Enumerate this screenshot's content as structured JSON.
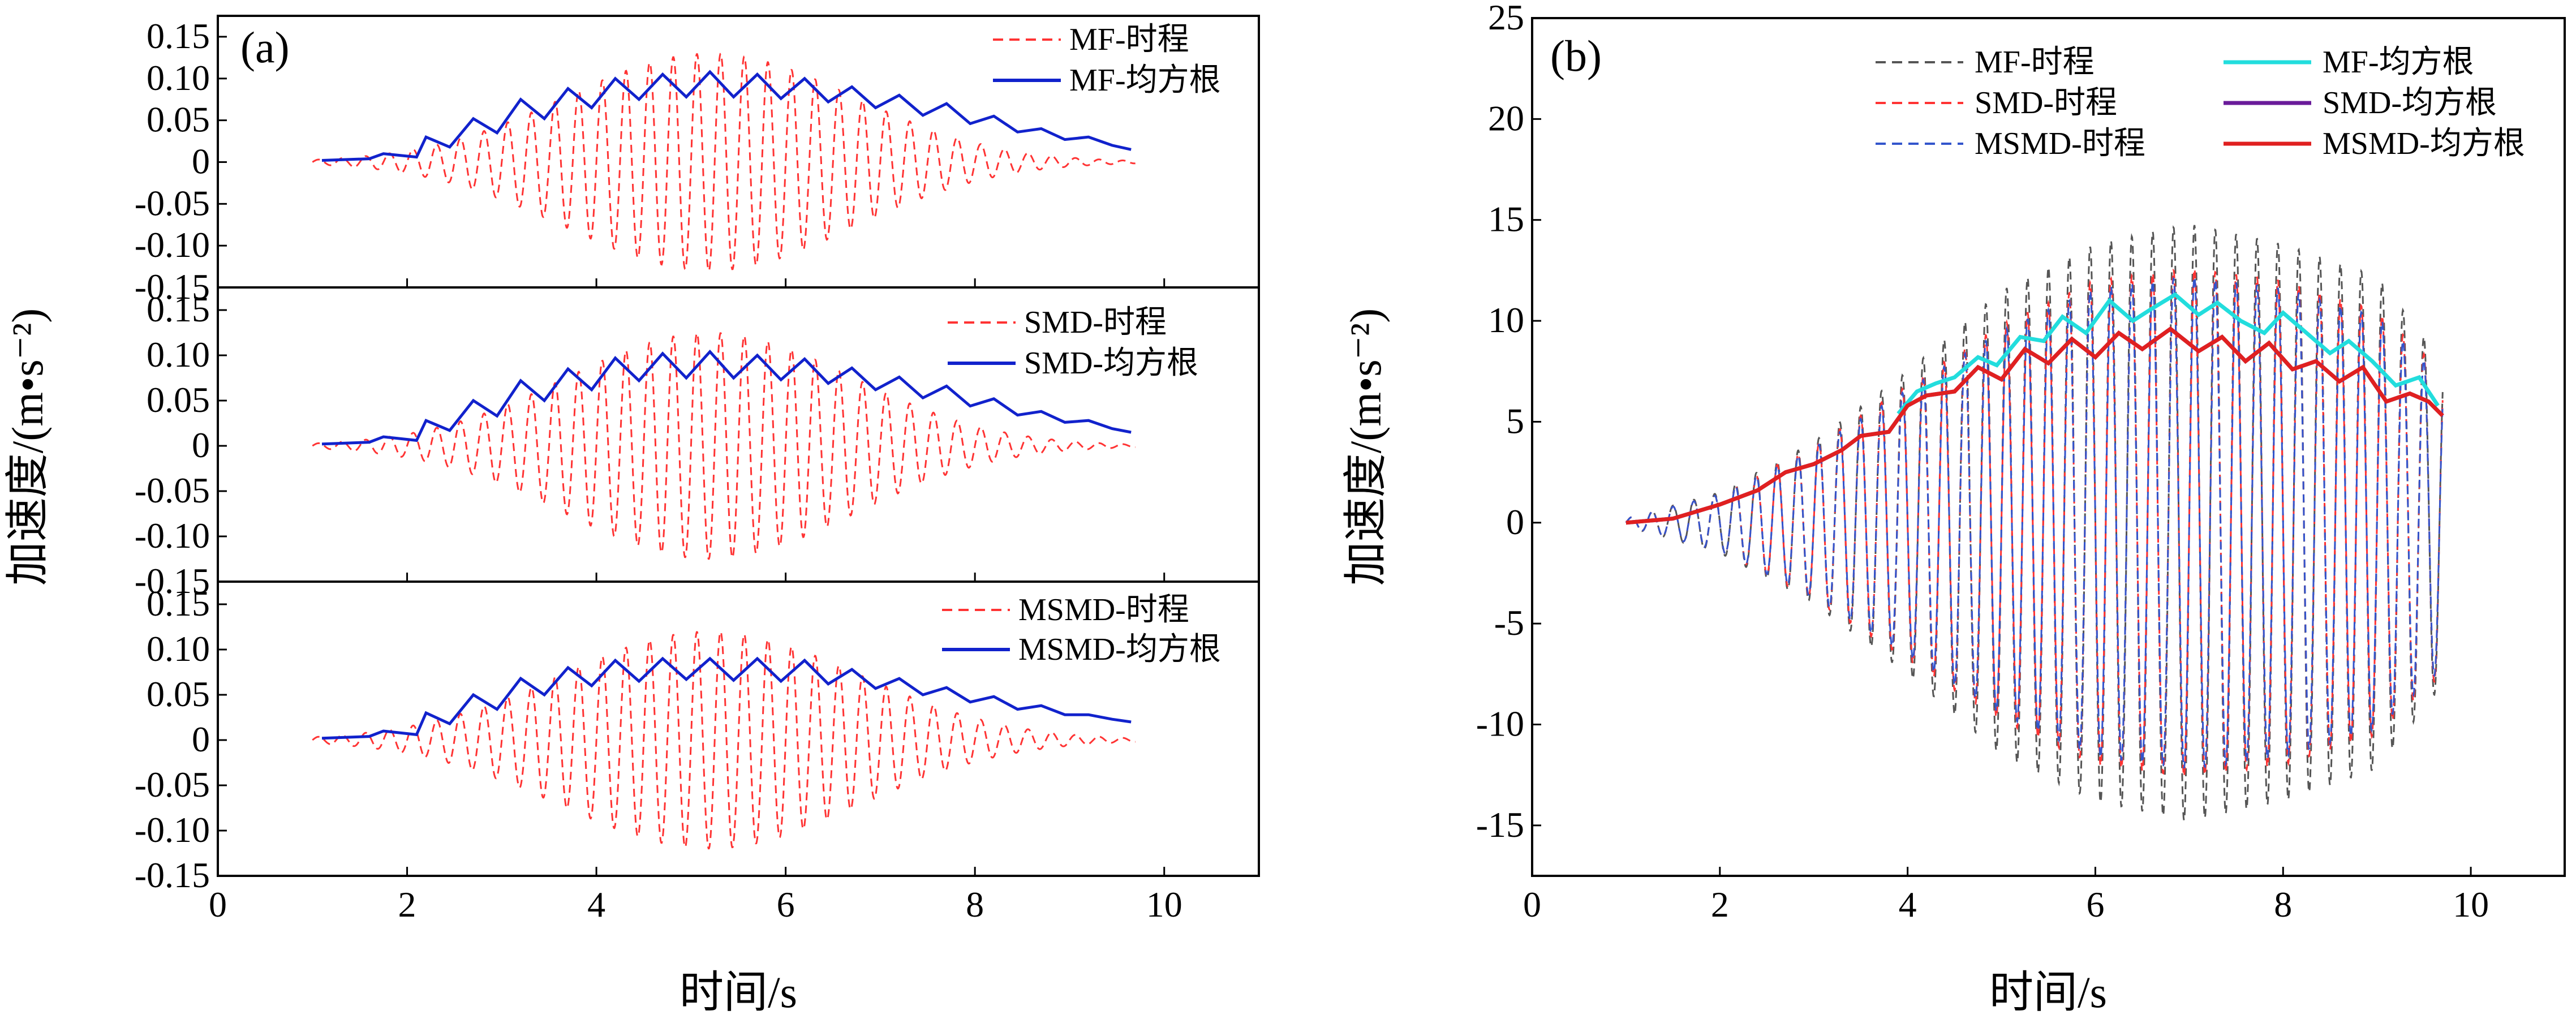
{
  "figure": {
    "colors": {
      "mf_time": "#555555",
      "red_time": "#ff3333",
      "blue_time": "#3355cc",
      "blue_rms": "#1122cc",
      "mf_rms": "#22dddd",
      "smd_rms": "#6a1b9a",
      "msmd_rms": "#e02020"
    }
  },
  "chart_data": [
    {
      "type": "line",
      "panel": "(a) top",
      "panel_tag": "(a)",
      "xlim": [
        0,
        11
      ],
      "ylim": [
        -0.15,
        0.175
      ],
      "xticks": [
        "0",
        "2",
        "4",
        "6",
        "8",
        "10"
      ],
      "yticks": [
        "-0.15",
        "-0.10",
        "-0.05",
        "0",
        "0.05",
        "0.10",
        "0.15"
      ],
      "ytick_values": [
        -0.15,
        -0.1,
        -0.05,
        0,
        0.05,
        0.1,
        0.15
      ],
      "show_x_ticklabels": false,
      "legend_position": "top-right",
      "signal": {
        "t_start": 1.0,
        "t_end": 9.7,
        "freq_hz": 4.0,
        "peak_time": 5.2,
        "peak_amp": 0.13,
        "spread": 2.7
      },
      "rms": {
        "x": [
          1.1,
          1.6,
          1.75,
          2.1,
          2.2,
          2.45,
          2.7,
          2.95,
          3.2,
          3.45,
          3.7,
          3.95,
          4.2,
          4.45,
          4.7,
          4.95,
          5.2,
          5.45,
          5.7,
          5.95,
          6.2,
          6.45,
          6.7,
          6.95,
          7.2,
          7.45,
          7.7,
          7.95,
          8.2,
          8.45,
          8.7,
          8.95,
          9.2,
          9.45,
          9.65
        ],
        "y": [
          0.002,
          0.004,
          0.01,
          0.006,
          0.03,
          0.018,
          0.052,
          0.035,
          0.075,
          0.052,
          0.088,
          0.065,
          0.1,
          0.075,
          0.105,
          0.078,
          0.108,
          0.078,
          0.105,
          0.076,
          0.1,
          0.072,
          0.09,
          0.065,
          0.08,
          0.056,
          0.07,
          0.046,
          0.055,
          0.036,
          0.04,
          0.027,
          0.03,
          0.02,
          0.015
        ]
      },
      "series": [
        {
          "name": "MF-时程",
          "style": "dashed",
          "color": "#ff3333"
        },
        {
          "name": "MF-均方根",
          "style": "solid",
          "color": "#1122cc"
        }
      ]
    },
    {
      "type": "line",
      "panel": "(a) middle",
      "xlim": [
        0,
        11
      ],
      "ylim": [
        -0.15,
        0.175
      ],
      "xticks": [
        "0",
        "2",
        "4",
        "6",
        "8",
        "10"
      ],
      "yticks": [
        "-0.15",
        "-0.10",
        "-0.05",
        "0",
        "0.05",
        "0.10",
        "0.15"
      ],
      "ytick_values": [
        -0.15,
        -0.1,
        -0.05,
        0,
        0.05,
        0.1,
        0.15
      ],
      "show_x_ticklabels": false,
      "legend_position": "top-right",
      "signal": {
        "t_start": 1.0,
        "t_end": 9.7,
        "freq_hz": 4.0,
        "peak_time": 5.2,
        "peak_amp": 0.125,
        "spread": 2.7
      },
      "rms": {
        "x": [
          1.1,
          1.6,
          1.75,
          2.1,
          2.2,
          2.45,
          2.7,
          2.95,
          3.2,
          3.45,
          3.7,
          3.95,
          4.2,
          4.45,
          4.7,
          4.95,
          5.2,
          5.45,
          5.7,
          5.95,
          6.2,
          6.45,
          6.7,
          6.95,
          7.2,
          7.45,
          7.7,
          7.95,
          8.2,
          8.45,
          8.7,
          8.95,
          9.2,
          9.45,
          9.65
        ],
        "y": [
          0.002,
          0.004,
          0.01,
          0.006,
          0.028,
          0.017,
          0.05,
          0.033,
          0.072,
          0.05,
          0.085,
          0.062,
          0.097,
          0.072,
          0.102,
          0.075,
          0.104,
          0.075,
          0.1,
          0.073,
          0.096,
          0.069,
          0.086,
          0.062,
          0.076,
          0.053,
          0.066,
          0.044,
          0.052,
          0.034,
          0.038,
          0.026,
          0.028,
          0.019,
          0.015
        ]
      },
      "series": [
        {
          "name": "SMD-时程",
          "style": "dashed",
          "color": "#ff3333"
        },
        {
          "name": "SMD-均方根",
          "style": "solid",
          "color": "#1122cc"
        }
      ]
    },
    {
      "type": "line",
      "panel": "(a) bottom",
      "xlim": [
        0,
        11
      ],
      "ylim": [
        -0.15,
        0.175
      ],
      "xticks": [
        "0",
        "2",
        "4",
        "6",
        "8",
        "10"
      ],
      "yticks": [
        "-0.15",
        "-0.10",
        "-0.05",
        "0",
        "0.05",
        "0.10",
        "0.15"
      ],
      "ytick_values": [
        -0.15,
        -0.1,
        -0.05,
        0,
        0.05,
        0.1,
        0.15
      ],
      "show_x_ticklabels": true,
      "xlabel": "时间/s",
      "legend_position": "top-right",
      "signal": {
        "t_start": 1.0,
        "t_end": 9.7,
        "freq_hz": 4.0,
        "peak_time": 5.2,
        "peak_amp": 0.12,
        "spread": 2.8
      },
      "rms": {
        "x": [
          1.1,
          1.6,
          1.75,
          2.1,
          2.2,
          2.45,
          2.7,
          2.95,
          3.2,
          3.45,
          3.7,
          3.95,
          4.2,
          4.45,
          4.7,
          4.95,
          5.2,
          5.45,
          5.7,
          5.95,
          6.2,
          6.45,
          6.7,
          6.95,
          7.2,
          7.45,
          7.7,
          7.95,
          8.2,
          8.45,
          8.7,
          8.95,
          9.2,
          9.45,
          9.65
        ],
        "y": [
          0.002,
          0.004,
          0.01,
          0.006,
          0.03,
          0.018,
          0.05,
          0.034,
          0.068,
          0.05,
          0.08,
          0.06,
          0.088,
          0.065,
          0.09,
          0.067,
          0.09,
          0.066,
          0.09,
          0.065,
          0.088,
          0.062,
          0.078,
          0.057,
          0.068,
          0.05,
          0.058,
          0.042,
          0.048,
          0.034,
          0.038,
          0.028,
          0.028,
          0.023,
          0.02
        ]
      },
      "series": [
        {
          "name": "MSMD-时程",
          "style": "dashed",
          "color": "#ff3333"
        },
        {
          "name": "MSMD-均方根",
          "style": "solid",
          "color": "#1122cc"
        }
      ]
    },
    {
      "type": "line",
      "panel": "(b)",
      "panel_tag": "(b)",
      "xlim": [
        0,
        11
      ],
      "ylim": [
        -17.5,
        25
      ],
      "xticks": [
        "0",
        "2",
        "4",
        "6",
        "8",
        "10"
      ],
      "yticks": [
        "-15",
        "-10",
        "-5",
        "0",
        "5",
        "10",
        "15",
        "20",
        "25"
      ],
      "ytick_values": [
        -15,
        -10,
        -5,
        0,
        5,
        10,
        15,
        20,
        25
      ],
      "xlabel": "时间/s",
      "ylabel": "加速度/(m•s⁻²)",
      "legend_position": "top-right",
      "signal": {
        "t_start": 1.0,
        "t_end": 9.7,
        "freq_hz": 4.5
      },
      "envelopes": {
        "MF-时程": {
          "x": [
            1.0,
            2.0,
            3.0,
            4.0,
            5.0,
            6.0,
            7.0,
            8.0,
            9.0,
            9.7
          ],
          "y": [
            0.2,
            1.5,
            4.0,
            7.5,
            11.5,
            13.8,
            14.8,
            13.8,
            12.2,
            8.0
          ]
        },
        "SMD-时程": {
          "x": [
            1.0,
            2.0,
            3.0,
            4.0,
            5.0,
            6.0,
            7.0,
            8.0,
            9.0,
            9.7
          ],
          "y": [
            0.2,
            1.4,
            3.8,
            6.8,
            9.8,
            12.0,
            12.6,
            12.0,
            10.5,
            7.5
          ]
        },
        "MSMD-时程": {
          "x": [
            1.0,
            2.0,
            3.0,
            4.0,
            5.0,
            6.0,
            7.0,
            8.0,
            9.0,
            9.7
          ],
          "y": [
            0.2,
            1.4,
            3.7,
            6.6,
            9.5,
            11.6,
            12.2,
            11.6,
            10.2,
            7.2
          ]
        }
      },
      "rms_series": [
        {
          "name": "MF-均方根",
          "x": [
            3.9,
            4.1,
            4.3,
            4.5,
            4.75,
            4.95,
            5.2,
            5.45,
            5.65,
            5.9,
            6.15,
            6.4,
            6.6,
            6.85,
            7.1,
            7.3,
            7.55,
            7.8,
            8.0,
            8.25,
            8.5,
            8.7,
            8.95,
            9.2,
            9.45,
            9.65
          ],
          "y": [
            5.4,
            6.5,
            6.9,
            7.2,
            8.2,
            7.8,
            9.2,
            9.0,
            10.2,
            9.4,
            11.0,
            10.0,
            10.6,
            11.3,
            10.3,
            10.9,
            10.0,
            9.4,
            10.4,
            9.4,
            8.4,
            9.0,
            8.0,
            6.8,
            7.2,
            5.8
          ]
        },
        {
          "name": "SMD-均方根",
          "x": [
            1.0,
            1.5,
            2.0,
            2.4,
            2.7,
            3.0,
            3.3,
            3.5,
            3.8,
            4.0,
            4.2,
            4.5,
            4.75,
            5.0,
            5.25,
            5.5,
            5.75,
            6.0,
            6.25,
            6.5,
            6.8,
            7.1,
            7.35,
            7.6,
            7.85,
            8.1,
            8.35,
            8.6,
            8.85,
            9.1,
            9.35,
            9.55,
            9.7
          ],
          "y": [
            0.0,
            0.2,
            0.9,
            1.6,
            2.5,
            2.9,
            3.6,
            4.3,
            4.5,
            5.8,
            6.3,
            6.5,
            7.7,
            7.1,
            8.6,
            7.9,
            9.1,
            8.2,
            9.4,
            8.6,
            9.6,
            8.5,
            9.2,
            8.0,
            8.9,
            7.6,
            8.0,
            7.0,
            7.7,
            6.0,
            6.4,
            6.0,
            5.3
          ]
        },
        {
          "name": "MSMD-均方根",
          "x": [
            1.0,
            1.5,
            2.0,
            2.4,
            2.7,
            3.0,
            3.3,
            3.5,
            3.8,
            4.0,
            4.2,
            4.5,
            4.75,
            5.0,
            5.25,
            5.5,
            5.75,
            6.0,
            6.25,
            6.5,
            6.8,
            7.1,
            7.35,
            7.6,
            7.85,
            8.1,
            8.35,
            8.6,
            8.85,
            9.1,
            9.35,
            9.55,
            9.7
          ],
          "y": [
            0.0,
            0.2,
            0.9,
            1.6,
            2.5,
            2.9,
            3.6,
            4.3,
            4.5,
            5.8,
            6.3,
            6.5,
            7.7,
            7.1,
            8.6,
            7.9,
            9.1,
            8.2,
            9.4,
            8.6,
            9.6,
            8.5,
            9.2,
            8.0,
            8.9,
            7.6,
            8.0,
            7.0,
            7.7,
            6.0,
            6.4,
            6.0,
            5.3
          ]
        }
      ],
      "series": [
        {
          "name": "MF-时程",
          "style": "dashed",
          "color": "#555555"
        },
        {
          "name": "SMD-时程",
          "style": "dashed",
          "color": "#ff3333"
        },
        {
          "name": "MSMD-时程",
          "style": "dashed",
          "color": "#3355cc"
        },
        {
          "name": "MF-均方根",
          "style": "solid",
          "color": "#22dddd"
        },
        {
          "name": "SMD-均方根",
          "style": "solid",
          "color": "#6a1b9a"
        },
        {
          "name": "MSMD-均方根",
          "style": "solid",
          "color": "#e02020"
        }
      ]
    }
  ],
  "panel_a_ylabel": "加速度/(m•s⁻²)"
}
